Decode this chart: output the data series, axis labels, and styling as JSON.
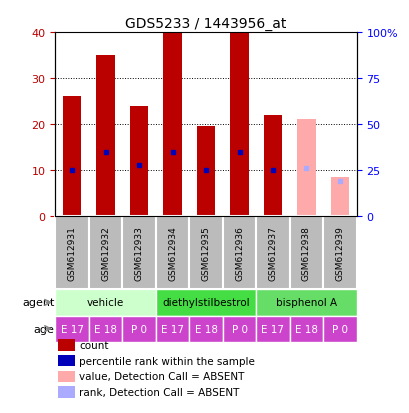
{
  "title": "GDS5233 / 1443956_at",
  "samples": [
    "GSM612931",
    "GSM612932",
    "GSM612933",
    "GSM612934",
    "GSM612935",
    "GSM612936",
    "GSM612937",
    "GSM612938",
    "GSM612939"
  ],
  "count_values": [
    26,
    35,
    24,
    40,
    19.5,
    40,
    22,
    null,
    null
  ],
  "rank_values": [
    25,
    35,
    27.5,
    35,
    25,
    35,
    25,
    null,
    null
  ],
  "absent_count_values": [
    null,
    null,
    null,
    null,
    null,
    null,
    null,
    21,
    8.5
  ],
  "absent_rank_values": [
    null,
    null,
    null,
    null,
    null,
    null,
    null,
    26,
    19
  ],
  "count_color": "#bb0000",
  "rank_color": "#0000bb",
  "absent_count_color": "#ffaaaa",
  "absent_rank_color": "#aaaaff",
  "ylim_left": [
    0,
    40
  ],
  "ylim_right": [
    0,
    100
  ],
  "yticks_left": [
    0,
    10,
    20,
    30,
    40
  ],
  "yticks_right": [
    0,
    25,
    50,
    75,
    100
  ],
  "yticklabels_right": [
    "0",
    "25",
    "50",
    "75",
    "100%"
  ],
  "agent_info": [
    {
      "label": "vehicle",
      "start": 0,
      "end": 3,
      "color": "#ccffcc"
    },
    {
      "label": "diethylstilbestrol",
      "start": 3,
      "end": 6,
      "color": "#44dd44"
    },
    {
      "label": "bisphenol A",
      "start": 6,
      "end": 9,
      "color": "#66dd66"
    }
  ],
  "age_labels": [
    "E 17",
    "E 18",
    "P 0",
    "E 17",
    "E 18",
    "P 0",
    "E 17",
    "E 18",
    "P 0"
  ],
  "age_color": "#cc44cc",
  "sample_bg_color": "#bbbbbb",
  "bar_width": 0.55,
  "rank_marker_size": 3.5,
  "legend_items": [
    {
      "label": "count",
      "color": "#bb0000"
    },
    {
      "label": "percentile rank within the sample",
      "color": "#0000bb"
    },
    {
      "label": "value, Detection Call = ABSENT",
      "color": "#ffaaaa"
    },
    {
      "label": "rank, Detection Call = ABSENT",
      "color": "#aaaaff"
    }
  ]
}
